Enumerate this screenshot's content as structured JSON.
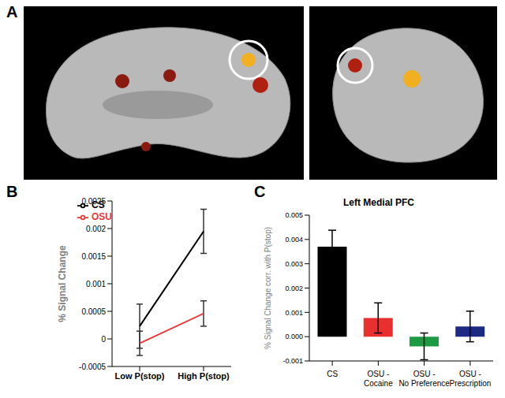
{
  "image_panel": {
    "annotations": [
      "A"
    ]
  },
  "chart_data": [
    {
      "type": "line",
      "annotations": [
        "B"
      ],
      "y_label": "% Signal Change",
      "categories": [
        "Low P(stop)",
        "High P(stop)"
      ],
      "series": [
        {
          "name": "CS",
          "color": "#000000",
          "values": [
            0.00023,
            0.00195
          ],
          "errors": [
            0.0004,
            0.0004
          ]
        },
        {
          "name": "OSU",
          "color": "#e8383a",
          "values": [
            -8e-05,
            0.00046
          ],
          "errors": [
            0.00022,
            0.00023
          ]
        }
      ],
      "ylim": [
        -0.0005,
        0.0025
      ],
      "yticks": [
        -0.0005,
        0,
        0.0005,
        0.001,
        0.0015,
        0.002,
        0.0025
      ],
      "legend": "upper left",
      "grid": false
    },
    {
      "type": "bar",
      "annotations": [
        "C"
      ],
      "title": "Left Medial PFC",
      "y_label": "% Signal Change corr. with P(stop)",
      "categories": [
        "CS",
        "OSU - Cocaine",
        "OSU - No Preference",
        "OSU - Prescription"
      ],
      "values": [
        0.0037,
        0.00077,
        -0.0004,
        0.00042
      ],
      "errors": [
        0.00068,
        0.00062,
        0.00055,
        0.00063
      ],
      "colors": [
        "#000000",
        "#e8302e",
        "#1e9a45",
        "#1c2a84"
      ],
      "ylim": [
        -0.001,
        0.005
      ],
      "yticks": [
        {
          "value": -0.001,
          "label": "-0.001"
        },
        {
          "value": 0,
          "label": "0.000"
        },
        {
          "value": 0.001,
          "label": "0.001"
        },
        {
          "value": 0.002,
          "label": "0.002"
        },
        {
          "value": 0.003,
          "label": "0.003"
        },
        {
          "value": 0.004,
          "label": "0.004"
        },
        {
          "value": 0.005,
          "label": "0.005"
        }
      ],
      "grid": false
    }
  ]
}
